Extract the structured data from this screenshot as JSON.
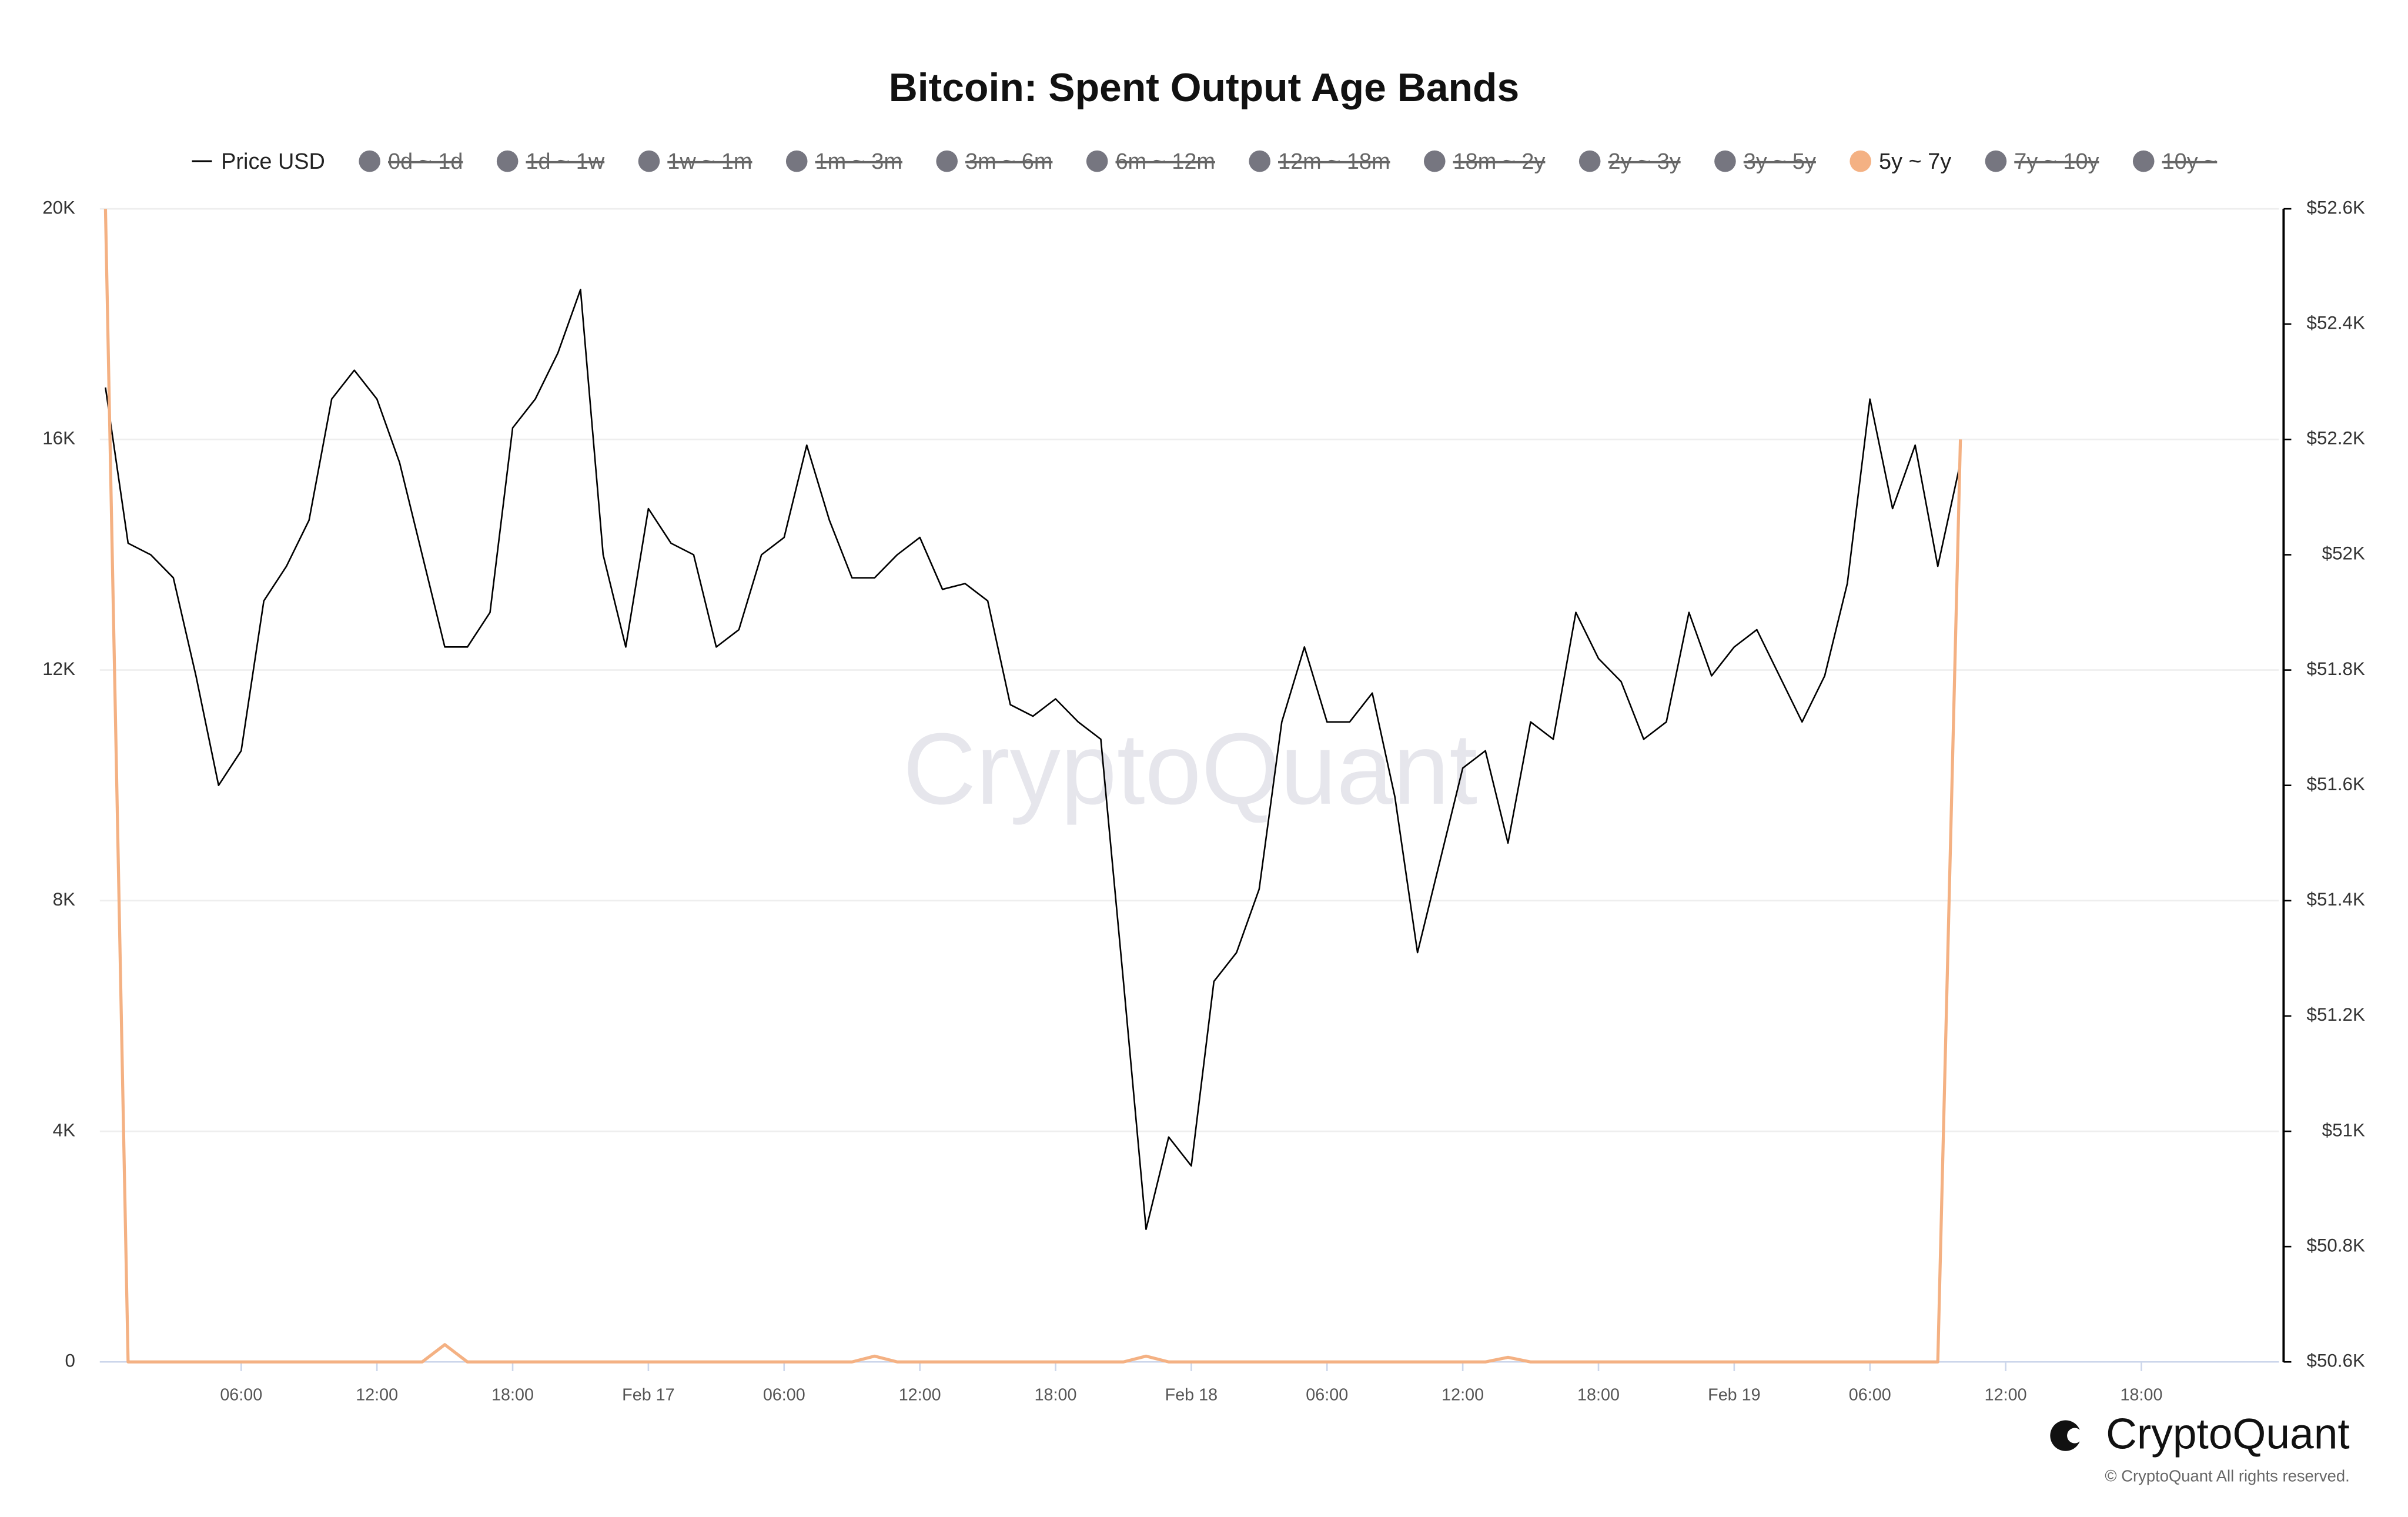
{
  "chart_data": {
    "type": "line",
    "title": "Bitcoin: Spent Output Age Bands",
    "x": [
      "Feb 16 00:00",
      "Feb 16 01:00",
      "Feb 16 02:00",
      "Feb 16 03:00",
      "Feb 16 04:00",
      "Feb 16 05:00",
      "Feb 16 06:00",
      "Feb 16 07:00",
      "Feb 16 08:00",
      "Feb 16 09:00",
      "Feb 16 10:00",
      "Feb 16 11:00",
      "Feb 16 12:00",
      "Feb 16 13:00",
      "Feb 16 14:00",
      "Feb 16 15:00",
      "Feb 16 16:00",
      "Feb 16 17:00",
      "Feb 16 18:00",
      "Feb 16 19:00",
      "Feb 16 20:00",
      "Feb 16 21:00",
      "Feb 16 22:00",
      "Feb 16 23:00",
      "Feb 17 00:00",
      "Feb 17 01:00",
      "Feb 17 02:00",
      "Feb 17 03:00",
      "Feb 17 04:00",
      "Feb 17 05:00",
      "Feb 17 06:00",
      "Feb 17 07:00",
      "Feb 17 08:00",
      "Feb 17 09:00",
      "Feb 17 10:00",
      "Feb 17 11:00",
      "Feb 17 12:00",
      "Feb 17 13:00",
      "Feb 17 14:00",
      "Feb 17 15:00",
      "Feb 17 16:00",
      "Feb 17 17:00",
      "Feb 17 18:00",
      "Feb 17 19:00",
      "Feb 17 20:00",
      "Feb 17 21:00",
      "Feb 17 22:00",
      "Feb 17 23:00",
      "Feb 18 00:00",
      "Feb 18 01:00",
      "Feb 18 02:00",
      "Feb 18 03:00",
      "Feb 18 04:00",
      "Feb 18 05:00",
      "Feb 18 06:00",
      "Feb 18 07:00",
      "Feb 18 08:00",
      "Feb 18 09:00",
      "Feb 18 10:00",
      "Feb 18 11:00",
      "Feb 18 12:00",
      "Feb 18 13:00",
      "Feb 18 14:00",
      "Feb 18 15:00",
      "Feb 18 16:00",
      "Feb 18 17:00",
      "Feb 18 18:00",
      "Feb 18 19:00",
      "Feb 18 20:00",
      "Feb 18 21:00",
      "Feb 18 22:00",
      "Feb 18 23:00",
      "Feb 19 00:00",
      "Feb 19 01:00",
      "Feb 19 02:00",
      "Feb 19 03:00",
      "Feb 19 04:00",
      "Feb 19 05:00",
      "Feb 19 06:00",
      "Feb 19 07:00",
      "Feb 19 08:00",
      "Feb 19 09:00",
      "Feb 19 10:00"
    ],
    "xlim": [
      "Feb 15 23:45",
      "Feb 20 00:05"
    ],
    "xticks": [
      {
        "value": "Feb 16 06:00",
        "label": "06:00"
      },
      {
        "value": "Feb 16 12:00",
        "label": "12:00"
      },
      {
        "value": "Feb 16 18:00",
        "label": "18:00"
      },
      {
        "value": "Feb 17 00:00",
        "label": "Feb 17"
      },
      {
        "value": "Feb 17 06:00",
        "label": "06:00"
      },
      {
        "value": "Feb 17 12:00",
        "label": "12:00"
      },
      {
        "value": "Feb 17 18:00",
        "label": "18:00"
      },
      {
        "value": "Feb 18 00:00",
        "label": "Feb 18"
      },
      {
        "value": "Feb 18 06:00",
        "label": "06:00"
      },
      {
        "value": "Feb 18 12:00",
        "label": "12:00"
      },
      {
        "value": "Feb 18 18:00",
        "label": "18:00"
      },
      {
        "value": "Feb 19 00:00",
        "label": "Feb 19"
      },
      {
        "value": "Feb 19 06:00",
        "label": "06:00"
      },
      {
        "value": "Feb 19 12:00",
        "label": "12:00"
      },
      {
        "value": "Feb 19 18:00",
        "label": "18:00"
      }
    ],
    "ylim": [
      0,
      20000
    ],
    "yticks": [
      0,
      {
        "value": 4000,
        "label": "4K"
      },
      {
        "value": 8000,
        "label": "8K"
      },
      {
        "value": 12000,
        "label": "12K"
      },
      {
        "value": 16000,
        "label": "16K"
      },
      {
        "value": 20000,
        "label": "20K"
      }
    ],
    "y2lim": [
      50600,
      52600
    ],
    "y2ticks": [
      {
        "value": 50600,
        "label": "$50.6K"
      },
      {
        "value": 50800,
        "label": "$50.8K"
      },
      {
        "value": 51000,
        "label": "$51K"
      },
      {
        "value": 51200,
        "label": "$51.2K"
      },
      {
        "value": 51400,
        "label": "$51.4K"
      },
      {
        "value": 51600,
        "label": "$51.6K"
      },
      {
        "value": 51800,
        "label": "$51.8K"
      },
      {
        "value": 52000,
        "label": "$52K"
      },
      {
        "value": 52200,
        "label": "$52.2K"
      },
      {
        "value": 52400,
        "label": "$52.4K"
      },
      {
        "value": 52600,
        "label": "$52.6K"
      }
    ],
    "grid": true,
    "series": [
      {
        "name": "Price USD",
        "color": "#000000",
        "axis": "y2",
        "values": [
          52290,
          52020,
          52000,
          51960,
          51790,
          51600,
          51660,
          51920,
          51980,
          52060,
          52270,
          52320,
          52270,
          52160,
          52000,
          51840,
          51840,
          51900,
          52220,
          52270,
          52350,
          52460,
          52000,
          51840,
          52080,
          52020,
          52000,
          51840,
          51870,
          52000,
          52030,
          52190,
          52060,
          51960,
          51960,
          52000,
          52030,
          51940,
          51950,
          51920,
          51740,
          51720,
          51750,
          51710,
          51680,
          51260,
          50830,
          50990,
          50940,
          51260,
          51310,
          51420,
          51710,
          51840,
          51710,
          51710,
          51760,
          51580,
          51310,
          51470,
          51630,
          51660,
          51500,
          51710,
          51680,
          51900,
          51820,
          51780,
          51680,
          51710,
          51900,
          51790,
          51840,
          51870,
          51790,
          51710,
          51790,
          51950,
          52270,
          52080,
          52190,
          51980,
          52160
        ]
      },
      {
        "name": "0d ~ 1d",
        "color": "#767680",
        "visible": false
      },
      {
        "name": "1d ~ 1w",
        "color": "#767680",
        "visible": false
      },
      {
        "name": "1w ~ 1m",
        "color": "#767680",
        "visible": false
      },
      {
        "name": "1m ~ 3m",
        "color": "#767680",
        "visible": false
      },
      {
        "name": "3m ~ 6m",
        "color": "#767680",
        "visible": false
      },
      {
        "name": "6m ~ 12m",
        "color": "#767680",
        "visible": false
      },
      {
        "name": "12m ~ 18m",
        "color": "#767680",
        "visible": false
      },
      {
        "name": "18m ~ 2y",
        "color": "#767680",
        "visible": false
      },
      {
        "name": "2y ~ 3y",
        "color": "#767680",
        "visible": false
      },
      {
        "name": "3y ~ 5y",
        "color": "#767680",
        "visible": false
      },
      {
        "name": "5y ~ 7y",
        "color": "#f4b183",
        "visible": true,
        "values": [
          20000,
          0,
          0,
          0,
          0,
          0,
          0,
          0,
          0,
          0,
          0,
          0,
          0,
          0,
          0,
          300,
          0,
          0,
          0,
          0,
          0,
          0,
          0,
          0,
          0,
          0,
          0,
          0,
          0,
          0,
          0,
          0,
          0,
          0,
          100,
          0,
          0,
          0,
          0,
          0,
          0,
          0,
          0,
          0,
          0,
          0,
          100,
          0,
          0,
          0,
          0,
          0,
          0,
          0,
          0,
          0,
          0,
          0,
          0,
          0,
          0,
          0,
          80,
          0,
          0,
          0,
          0,
          0,
          0,
          0,
          0,
          0,
          0,
          0,
          0,
          0,
          0,
          0,
          0,
          0,
          0,
          0,
          16000
        ]
      },
      {
        "name": "7y ~ 10y",
        "color": "#767680",
        "visible": false
      },
      {
        "name": "10y ~",
        "color": "#767680",
        "visible": false
      }
    ]
  },
  "branding": {
    "watermark": "CryptoQuant",
    "logo": "CryptoQuant",
    "copyright": "© CryptoQuant All rights reserved."
  }
}
